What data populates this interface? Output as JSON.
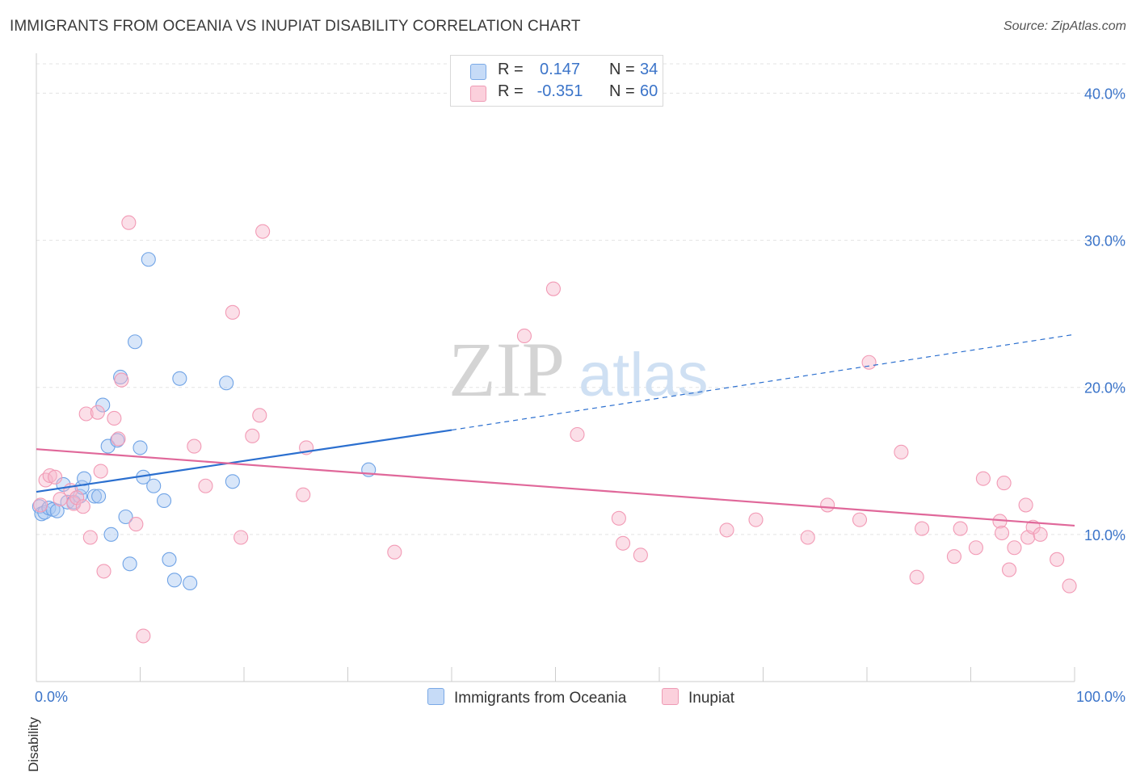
{
  "title": "IMMIGRANTS FROM OCEANIA VS INUPIAT DISABILITY CORRELATION CHART",
  "source": "Source: ZipAtlas.com",
  "watermark": {
    "zip": "ZIP",
    "atlas": "atlas"
  },
  "legend": {
    "rows": [
      {
        "r_label": "R =",
        "r_value": "0.147",
        "n_label": "N =",
        "n_value": "34",
        "color": "#a8c8f2"
      },
      {
        "r_label": "R =",
        "r_value": "-0.351",
        "n_label": "N =",
        "n_value": "60",
        "color": "#f7b8cb"
      }
    ]
  },
  "bottom_legend": [
    {
      "label": "Immigrants from Oceania",
      "color": "#a8c8f2"
    },
    {
      "label": "Inupiat",
      "color": "#f7b8cb"
    }
  ],
  "chart_data": {
    "type": "scatter",
    "title": "IMMIGRANTS FROM OCEANIA VS INUPIAT DISABILITY CORRELATION CHART",
    "xlabel": "",
    "ylabel": "Disability",
    "xlim": [
      0,
      100
    ],
    "ylim": [
      0,
      42
    ],
    "x_tick_labels": [
      "0.0%",
      "100.0%"
    ],
    "y_ticks": [
      10,
      20,
      30,
      40
    ],
    "y_tick_labels": [
      "10.0%",
      "20.0%",
      "30.0%",
      "40.0%"
    ],
    "grid": true,
    "series": [
      {
        "name": "Immigrants from Oceania",
        "color": "#6fa3e6",
        "line_color": "#2b6fcf",
        "trend": {
          "x": [
            0,
            40,
            100
          ],
          "y": [
            12.9,
            17.1,
            23.6
          ]
        },
        "points": [
          [
            0.3,
            11.9
          ],
          [
            0.5,
            11.4
          ],
          [
            0.8,
            11.5
          ],
          [
            1.2,
            11.8
          ],
          [
            1.6,
            11.7
          ],
          [
            2.0,
            11.6
          ],
          [
            2.6,
            13.4
          ],
          [
            3.0,
            12.2
          ],
          [
            3.6,
            12.2
          ],
          [
            4.2,
            12.6
          ],
          [
            4.4,
            13.2
          ],
          [
            4.6,
            13.8
          ],
          [
            5.6,
            12.6
          ],
          [
            6.0,
            12.6
          ],
          [
            6.4,
            18.8
          ],
          [
            6.9,
            16.0
          ],
          [
            7.2,
            10.0
          ],
          [
            7.8,
            16.4
          ],
          [
            8.1,
            20.7
          ],
          [
            8.6,
            11.2
          ],
          [
            9.0,
            8.0
          ],
          [
            9.5,
            23.1
          ],
          [
            10.0,
            15.9
          ],
          [
            10.3,
            13.9
          ],
          [
            10.8,
            28.7
          ],
          [
            11.3,
            13.3
          ],
          [
            12.3,
            12.3
          ],
          [
            12.8,
            8.3
          ],
          [
            13.3,
            6.9
          ],
          [
            13.8,
            20.6
          ],
          [
            14.8,
            6.7
          ],
          [
            18.3,
            20.3
          ],
          [
            18.9,
            13.6
          ],
          [
            32.0,
            14.4
          ]
        ]
      },
      {
        "name": "Inupiat",
        "color": "#f29ab5",
        "line_color": "#e0689a",
        "trend": {
          "x": [
            0,
            100
          ],
          "y": [
            15.8,
            10.6
          ]
        },
        "points": [
          [
            0.4,
            12.0
          ],
          [
            0.9,
            13.7
          ],
          [
            1.3,
            14.0
          ],
          [
            1.8,
            13.9
          ],
          [
            2.3,
            12.4
          ],
          [
            3.3,
            13.0
          ],
          [
            3.6,
            12.1
          ],
          [
            3.9,
            12.5
          ],
          [
            4.5,
            11.9
          ],
          [
            4.8,
            18.2
          ],
          [
            5.2,
            9.8
          ],
          [
            5.9,
            18.3
          ],
          [
            6.2,
            14.3
          ],
          [
            6.5,
            7.5
          ],
          [
            7.5,
            17.9
          ],
          [
            7.9,
            16.5
          ],
          [
            8.2,
            20.5
          ],
          [
            8.9,
            31.2
          ],
          [
            9.6,
            10.7
          ],
          [
            10.3,
            3.1
          ],
          [
            15.2,
            16.0
          ],
          [
            16.3,
            13.3
          ],
          [
            18.9,
            25.1
          ],
          [
            19.7,
            9.8
          ],
          [
            20.8,
            16.7
          ],
          [
            21.5,
            18.1
          ],
          [
            21.8,
            30.6
          ],
          [
            25.7,
            12.7
          ],
          [
            26.0,
            15.9
          ],
          [
            34.5,
            8.8
          ],
          [
            47.0,
            23.5
          ],
          [
            49.8,
            26.7
          ],
          [
            52.1,
            16.8
          ],
          [
            56.1,
            11.1
          ],
          [
            56.5,
            9.4
          ],
          [
            58.2,
            8.6
          ],
          [
            66.5,
            10.3
          ],
          [
            69.3,
            11.0
          ],
          [
            74.3,
            9.8
          ],
          [
            76.2,
            12.0
          ],
          [
            79.3,
            11.0
          ],
          [
            80.2,
            21.7
          ],
          [
            83.3,
            15.6
          ],
          [
            84.8,
            7.1
          ],
          [
            85.3,
            10.4
          ],
          [
            88.4,
            8.5
          ],
          [
            89.0,
            10.4
          ],
          [
            90.5,
            9.1
          ],
          [
            91.2,
            13.8
          ],
          [
            92.8,
            10.9
          ],
          [
            93.0,
            10.1
          ],
          [
            93.2,
            13.5
          ],
          [
            93.7,
            7.6
          ],
          [
            94.2,
            9.1
          ],
          [
            95.3,
            12.0
          ],
          [
            95.5,
            9.8
          ],
          [
            96.0,
            10.5
          ],
          [
            96.7,
            10.0
          ],
          [
            98.3,
            8.3
          ],
          [
            99.5,
            6.5
          ]
        ]
      }
    ]
  }
}
